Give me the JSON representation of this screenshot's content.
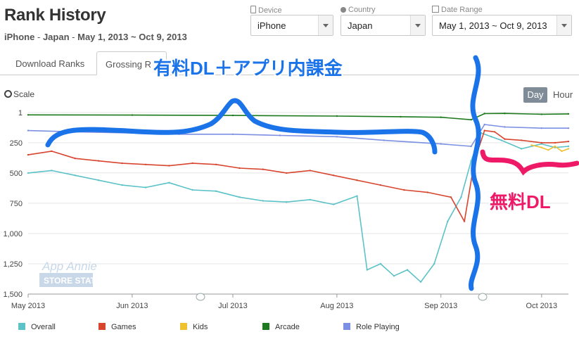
{
  "header": {
    "title": "Rank History",
    "device": "iPhone",
    "separator": "-",
    "region": "Japan",
    "date_span": "May 1, 2013 ~ Oct 9, 2013"
  },
  "selectors": {
    "device": {
      "label": "Device",
      "value": "iPhone"
    },
    "country": {
      "label": "Country",
      "value": "Japan"
    },
    "date_range": {
      "label": "Date Range",
      "value": "May 1, 2013 ~ Oct 9, 2013"
    }
  },
  "tabs": [
    {
      "label": "Download Ranks"
    },
    {
      "label": "Grossing R"
    }
  ],
  "controls": {
    "scale": "Scale",
    "day": "Day",
    "hour": "Hour"
  },
  "watermark": {
    "line1": "App Annie",
    "line2": "STORE STATS"
  },
  "annotations": {
    "paid": "有料DL＋アプリ内課金",
    "free": "無料DL"
  },
  "colors": {
    "Overall": "#5bc2c7",
    "Games": "#d8452f",
    "Kids": "#efc030",
    "Arcade": "#1c7a1c",
    "Role Playing": "#7b8fe3",
    "annotation_blue": "#1a73e8",
    "annotation_pink": "#ee1a68"
  },
  "chart_data": {
    "type": "line",
    "y_inverted": true,
    "ylim": [
      1500,
      1
    ],
    "y_ticks": [
      "1",
      "250",
      "500",
      "750",
      "1,000",
      "1,250",
      "1,500"
    ],
    "x_ticks": [
      "May 2013",
      "Jun 2013",
      "Jul 2013",
      "Aug 2013",
      "Sep 2013",
      "Oct 2013"
    ],
    "x_range": [
      "2013-05-01",
      "2013-10-09"
    ],
    "legend": [
      "Overall",
      "Games",
      "Kids",
      "Arcade",
      "Role Playing"
    ],
    "series": [
      {
        "name": "Overall",
        "x": [
          "2013-05-01",
          "2013-05-08",
          "2013-05-15",
          "2013-05-22",
          "2013-05-29",
          "2013-06-05",
          "2013-06-12",
          "2013-06-19",
          "2013-06-26",
          "2013-07-03",
          "2013-07-10",
          "2013-07-17",
          "2013-07-24",
          "2013-07-31",
          "2013-08-07",
          "2013-08-10",
          "2013-08-14",
          "2013-08-18",
          "2013-08-22",
          "2013-08-26",
          "2013-08-30",
          "2013-09-03",
          "2013-09-07",
          "2013-09-10",
          "2013-09-13",
          "2013-09-16",
          "2013-09-19",
          "2013-09-25",
          "2013-10-01",
          "2013-10-05",
          "2013-10-09"
        ],
        "values": [
          500,
          480,
          520,
          560,
          600,
          620,
          580,
          640,
          650,
          700,
          730,
          740,
          720,
          760,
          690,
          1300,
          1250,
          1350,
          1300,
          1400,
          1250,
          900,
          700,
          400,
          170,
          200,
          230,
          300,
          260,
          290,
          280
        ]
      },
      {
        "name": "Games",
        "x": [
          "2013-05-01",
          "2013-05-08",
          "2013-05-15",
          "2013-05-22",
          "2013-05-29",
          "2013-06-05",
          "2013-06-12",
          "2013-06-19",
          "2013-06-26",
          "2013-07-03",
          "2013-07-10",
          "2013-07-17",
          "2013-07-24",
          "2013-07-31",
          "2013-08-07",
          "2013-08-14",
          "2013-08-21",
          "2013-08-28",
          "2013-09-04",
          "2013-09-08",
          "2013-09-11",
          "2013-09-14",
          "2013-09-17",
          "2013-09-20",
          "2013-09-25",
          "2013-10-01",
          "2013-10-05",
          "2013-10-09"
        ],
        "values": [
          350,
          320,
          380,
          400,
          420,
          430,
          440,
          420,
          430,
          460,
          470,
          500,
          480,
          520,
          560,
          600,
          640,
          660,
          700,
          900,
          400,
          150,
          160,
          220,
          230,
          250,
          250,
          240
        ]
      },
      {
        "name": "Kids",
        "x": [
          "2013-09-28",
          "2013-10-01",
          "2013-10-03",
          "2013-10-05",
          "2013-10-07",
          "2013-10-09"
        ],
        "values": [
          270,
          290,
          310,
          280,
          320,
          300
        ]
      },
      {
        "name": "Arcade",
        "x": [
          "2013-05-01",
          "2013-06-01",
          "2013-07-01",
          "2013-08-01",
          "2013-08-20",
          "2013-09-01",
          "2013-09-10",
          "2013-09-14",
          "2013-09-20",
          "2013-10-01",
          "2013-10-09"
        ],
        "values": [
          20,
          22,
          25,
          30,
          35,
          40,
          60,
          10,
          8,
          15,
          12
        ]
      },
      {
        "name": "Role Playing",
        "x": [
          "2013-05-01",
          "2013-05-15",
          "2013-06-01",
          "2013-06-15",
          "2013-07-01",
          "2013-07-15",
          "2013-08-01",
          "2013-08-15",
          "2013-09-01",
          "2013-09-10",
          "2013-09-14",
          "2013-09-20",
          "2013-10-01",
          "2013-10-09"
        ],
        "values": [
          150,
          160,
          170,
          180,
          180,
          190,
          200,
          230,
          260,
          280,
          100,
          120,
          130,
          130
        ]
      }
    ]
  }
}
